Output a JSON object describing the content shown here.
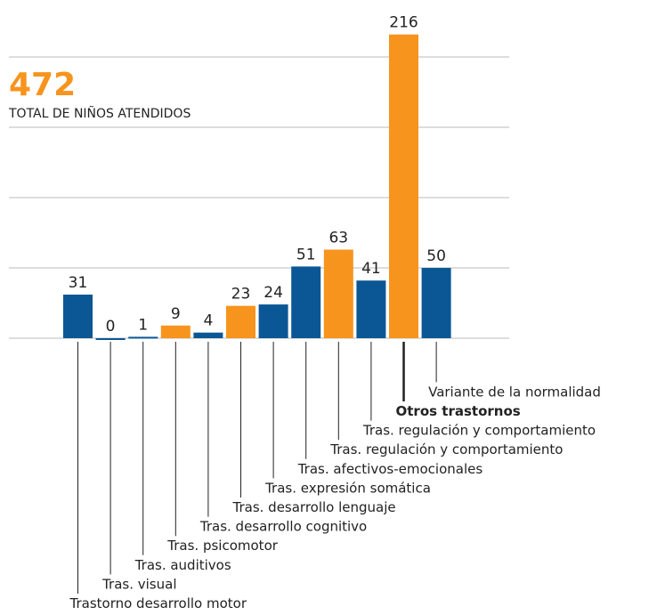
{
  "chart_data": {
    "type": "bar",
    "annotation": {
      "value": "472",
      "label": "TOTAL DE NIÑOS ATENDIDOS",
      "color": "#f7941d"
    },
    "categories": [
      "Trastorno desarrollo motor",
      "Tras. visual",
      "Tras. auditivos",
      "Tras. psicomotor",
      "Tras. desarrollo cognitivo",
      "Tras. desarrollo lenguaje",
      "Tras. expresión somática",
      "Tras. afectivos-emocionales",
      "Tras. regulación y comportamiento",
      "Tras. regulación y comportamiento",
      "Otros trastornos",
      "Variante de la normalidad"
    ],
    "values": [
      31,
      0,
      1,
      9,
      4,
      23,
      24,
      51,
      63,
      41,
      216,
      50
    ],
    "colors": [
      "#0b5796",
      "#0b5796",
      "#0b5796",
      "#f7941d",
      "#0b5796",
      "#f7941d",
      "#0b5796",
      "#0b5796",
      "#f7941d",
      "#0b5796",
      "#f7941d",
      "#0b5796"
    ],
    "bold_category": 10,
    "ylim": [
      0,
      200
    ],
    "yticks": [
      0,
      50,
      100,
      150,
      200
    ],
    "grid": true
  }
}
